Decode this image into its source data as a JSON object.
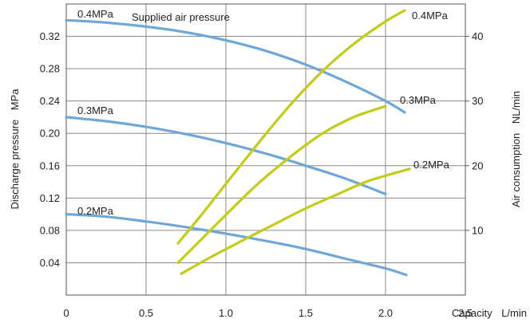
{
  "chart_data": {
    "type": "line",
    "xlabel": "Capacity",
    "xunit": "L/min",
    "ylabel_left": "Discharge pressure",
    "yunit_left": "MPa",
    "ylabel_right": "Air consumption",
    "yunit_right": "NL/min",
    "xlim": [
      0,
      2.5
    ],
    "ylim_left": [
      0,
      0.36
    ],
    "ylim_right": [
      0,
      45
    ],
    "x_ticks": [
      "0",
      "0.5",
      "1.0",
      "1.5",
      "2.0",
      "2.5"
    ],
    "x_tick_values": [
      0,
      0.5,
      1.0,
      1.5,
      2.0,
      2.5
    ],
    "y_left_ticks": [
      "0.04",
      "0.08",
      "0.12",
      "0.16",
      "0.20",
      "0.24",
      "0.28",
      "0.32"
    ],
    "y_left_tick_values": [
      0.04,
      0.08,
      0.12,
      0.16,
      0.2,
      0.24,
      0.28,
      0.32
    ],
    "y_right_ticks": [
      "10",
      "20",
      "30",
      "40"
    ],
    "y_right_tick_values": [
      10,
      20,
      30,
      40
    ],
    "grid": true,
    "annotation": "Supplied air pressure",
    "colors": {
      "pressure": "#6fa8d8",
      "consumption": "#c2cc1a",
      "grid": "#888888"
    },
    "series": [
      {
        "name": "0.4MPa",
        "group": "discharge_pressure",
        "axis": "left",
        "x": [
          0,
          0.25,
          0.5,
          0.75,
          1.0,
          1.25,
          1.5,
          1.75,
          2.0,
          2.12
        ],
        "y": [
          0.34,
          0.337,
          0.332,
          0.325,
          0.315,
          0.302,
          0.285,
          0.264,
          0.24,
          0.226
        ]
      },
      {
        "name": "0.3MPa",
        "group": "discharge_pressure",
        "axis": "left",
        "x": [
          0,
          0.25,
          0.5,
          0.75,
          1.0,
          1.25,
          1.5,
          1.75,
          2.0
        ],
        "y": [
          0.22,
          0.215,
          0.208,
          0.199,
          0.188,
          0.175,
          0.16,
          0.144,
          0.125
        ]
      },
      {
        "name": "0.2MPa",
        "group": "discharge_pressure",
        "axis": "left",
        "x": [
          0,
          0.25,
          0.5,
          0.75,
          1.0,
          1.25,
          1.5,
          1.75,
          2.0,
          2.13
        ],
        "y": [
          0.1,
          0.097,
          0.091,
          0.084,
          0.076,
          0.067,
          0.057,
          0.045,
          0.033,
          0.025
        ]
      },
      {
        "name": "0.4MPa",
        "group": "air_consumption",
        "axis": "right",
        "x": [
          0.7,
          0.85,
          1.0,
          1.2,
          1.4,
          1.6,
          1.8,
          2.0,
          2.12
        ],
        "y": [
          8.0,
          12.5,
          17.2,
          23.4,
          29.3,
          34.5,
          38.8,
          42.3,
          44.0
        ]
      },
      {
        "name": "0.3MPa",
        "group": "air_consumption",
        "axis": "right",
        "x": [
          0.7,
          0.85,
          1.0,
          1.2,
          1.4,
          1.6,
          1.8,
          2.0
        ],
        "y": [
          5.0,
          8.7,
          12.4,
          17.2,
          21.3,
          24.9,
          27.5,
          29.2
        ]
      },
      {
        "name": "0.2MPa",
        "group": "air_consumption",
        "axis": "right",
        "x": [
          0.72,
          0.9,
          1.1,
          1.3,
          1.5,
          1.7,
          1.9,
          2.15
        ],
        "y": [
          3.3,
          5.8,
          8.4,
          10.9,
          13.4,
          15.6,
          17.7,
          19.5
        ]
      }
    ],
    "series_labels": [
      {
        "text": "0.4MPa",
        "for": "pressure-0.4"
      },
      {
        "text": "0.3MPa",
        "for": "pressure-0.3"
      },
      {
        "text": "0.2MPa",
        "for": "pressure-0.2"
      },
      {
        "text": "0.4MPa",
        "for": "consumption-0.4"
      },
      {
        "text": "0.3MPa",
        "for": "consumption-0.3"
      },
      {
        "text": "0.2MPa",
        "for": "consumption-0.2"
      }
    ]
  }
}
